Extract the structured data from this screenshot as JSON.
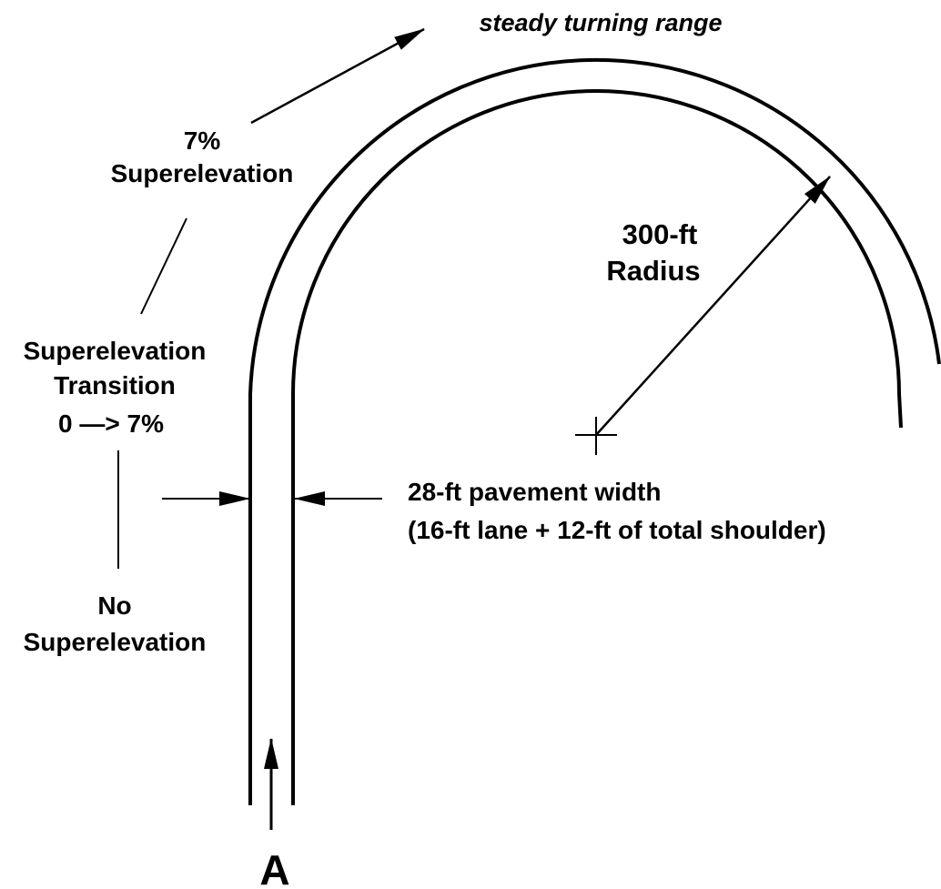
{
  "top_label": "steady turning range",
  "left_labels": {
    "full": [
      "7%",
      "Superelevation"
    ],
    "transition": [
      "Superelevation",
      "Transition",
      "0 —> 7%"
    ],
    "none": [
      "No",
      "Superelevation"
    ]
  },
  "radius_label": [
    "300-ft",
    "Radius"
  ],
  "width_label": [
    "28-ft pavement width",
    "(16-ft lane + 12-ft of total shoulder)"
  ],
  "entry_label": "A"
}
